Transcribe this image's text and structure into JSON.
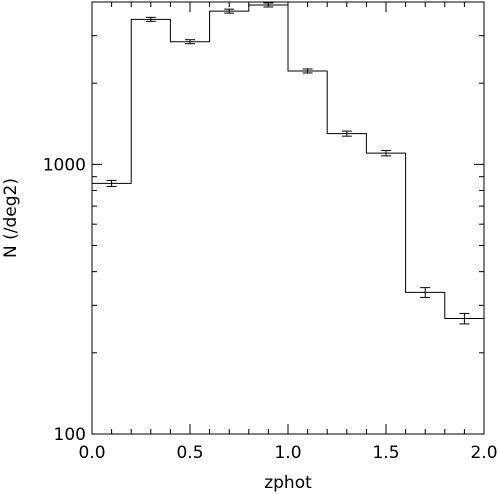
{
  "chart_data": {
    "type": "step",
    "title": "",
    "xlabel": "zphot",
    "ylabel": "N (/deg2)",
    "xlim": [
      0.0,
      2.0
    ],
    "ylim": [
      100,
      4000
    ],
    "yscale": "log",
    "grid": false,
    "x_ticks": [
      {
        "value": 0.0,
        "label": "0.0"
      },
      {
        "value": 0.5,
        "label": "0.5"
      },
      {
        "value": 1.0,
        "label": "1.0"
      },
      {
        "value": 1.5,
        "label": "1.5"
      },
      {
        "value": 2.0,
        "label": "2.0"
      }
    ],
    "y_ticks": [
      {
        "value": 100,
        "label": "100"
      },
      {
        "value": 1000,
        "label": "1000"
      }
    ],
    "bins": [
      {
        "x0": 0.0,
        "x1": 0.2,
        "x": 0.1,
        "y": 850,
        "err": 22
      },
      {
        "x0": 0.2,
        "x1": 0.4,
        "x": 0.3,
        "y": 3450,
        "err": 45
      },
      {
        "x0": 0.4,
        "x1": 0.6,
        "x": 0.5,
        "y": 2850,
        "err": 40
      },
      {
        "x0": 0.6,
        "x1": 0.8,
        "x": 0.7,
        "y": 3700,
        "err": 45
      },
      {
        "x0": 0.8,
        "x1": 1.0,
        "x": 0.9,
        "y": 3900,
        "err": 45
      },
      {
        "x0": 1.0,
        "x1": 1.2,
        "x": 1.1,
        "y": 2220,
        "err": 35
      },
      {
        "x0": 1.2,
        "x1": 1.4,
        "x": 1.3,
        "y": 1300,
        "err": 28
      },
      {
        "x0": 1.4,
        "x1": 1.6,
        "x": 1.5,
        "y": 1100,
        "err": 25
      },
      {
        "x0": 1.6,
        "x1": 1.8,
        "x": 1.7,
        "y": 335,
        "err": 14
      },
      {
        "x0": 1.8,
        "x1": 2.0,
        "x": 1.9,
        "y": 268,
        "err": 12
      }
    ]
  }
}
